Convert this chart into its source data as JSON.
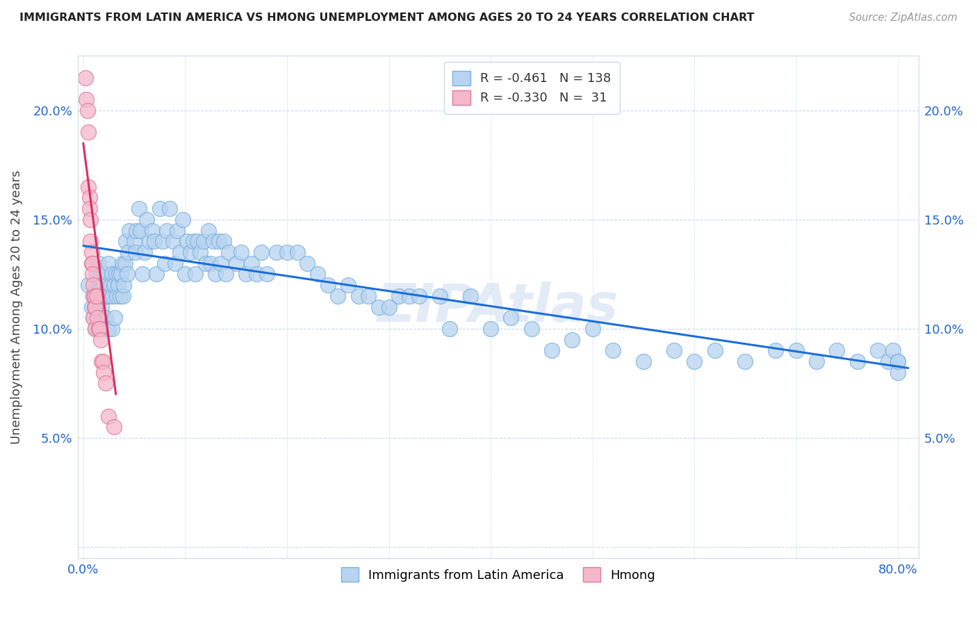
{
  "title": "IMMIGRANTS FROM LATIN AMERICA VS HMONG UNEMPLOYMENT AMONG AGES 20 TO 24 YEARS CORRELATION CHART",
  "source": "Source: ZipAtlas.com",
  "xlabel_latin": "Immigrants from Latin America",
  "xlabel_hmong": "Hmong",
  "ylabel": "Unemployment Among Ages 20 to 24 years",
  "latin_R": -0.461,
  "latin_N": 138,
  "hmong_R": -0.33,
  "hmong_N": 31,
  "xlim": [
    -0.005,
    0.82
  ],
  "ylim": [
    -0.005,
    0.225
  ],
  "x_ticks": [
    0.0,
    0.1,
    0.2,
    0.3,
    0.4,
    0.5,
    0.6,
    0.7,
    0.8
  ],
  "y_ticks": [
    0.0,
    0.05,
    0.1,
    0.15,
    0.2
  ],
  "latin_color": "#b8d4f0",
  "latin_edge_color": "#7ab0e0",
  "hmong_color": "#f5b8cb",
  "hmong_edge_color": "#e07898",
  "trendline_latin_color": "#1a6ed8",
  "trendline_hmong_color": "#d83060",
  "watermark_color": "#d0dff0",
  "latin_scatter_x": [
    0.005,
    0.008,
    0.01,
    0.01,
    0.012,
    0.013,
    0.013,
    0.014,
    0.015,
    0.015,
    0.016,
    0.016,
    0.017,
    0.017,
    0.018,
    0.018,
    0.019,
    0.019,
    0.02,
    0.02,
    0.021,
    0.021,
    0.022,
    0.022,
    0.023,
    0.023,
    0.024,
    0.025,
    0.025,
    0.026,
    0.027,
    0.028,
    0.028,
    0.029,
    0.03,
    0.031,
    0.032,
    0.033,
    0.034,
    0.035,
    0.036,
    0.037,
    0.038,
    0.039,
    0.04,
    0.041,
    0.042,
    0.043,
    0.044,
    0.045,
    0.05,
    0.051,
    0.052,
    0.055,
    0.056,
    0.058,
    0.06,
    0.062,
    0.065,
    0.068,
    0.07,
    0.072,
    0.075,
    0.078,
    0.08,
    0.082,
    0.085,
    0.088,
    0.09,
    0.092,
    0.095,
    0.098,
    0.1,
    0.102,
    0.105,
    0.108,
    0.11,
    0.112,
    0.115,
    0.118,
    0.12,
    0.123,
    0.125,
    0.128,
    0.13,
    0.133,
    0.135,
    0.138,
    0.14,
    0.143,
    0.15,
    0.155,
    0.16,
    0.165,
    0.17,
    0.175,
    0.18,
    0.19,
    0.2,
    0.21,
    0.22,
    0.23,
    0.24,
    0.25,
    0.26,
    0.27,
    0.28,
    0.29,
    0.3,
    0.31,
    0.32,
    0.33,
    0.35,
    0.36,
    0.38,
    0.4,
    0.42,
    0.44,
    0.46,
    0.48,
    0.5,
    0.52,
    0.55,
    0.58,
    0.6,
    0.62,
    0.65,
    0.68,
    0.7,
    0.72,
    0.74,
    0.76,
    0.78,
    0.79,
    0.795,
    0.8,
    0.8,
    0.8
  ],
  "latin_scatter_y": [
    0.12,
    0.11,
    0.105,
    0.115,
    0.1,
    0.115,
    0.125,
    0.11,
    0.1,
    0.13,
    0.115,
    0.12,
    0.105,
    0.125,
    0.11,
    0.12,
    0.105,
    0.115,
    0.1,
    0.12,
    0.115,
    0.125,
    0.105,
    0.115,
    0.1,
    0.12,
    0.115,
    0.1,
    0.13,
    0.115,
    0.12,
    0.1,
    0.125,
    0.115,
    0.12,
    0.105,
    0.125,
    0.115,
    0.12,
    0.125,
    0.115,
    0.125,
    0.13,
    0.115,
    0.12,
    0.13,
    0.14,
    0.125,
    0.135,
    0.145,
    0.14,
    0.135,
    0.145,
    0.155,
    0.145,
    0.125,
    0.135,
    0.15,
    0.14,
    0.145,
    0.14,
    0.125,
    0.155,
    0.14,
    0.13,
    0.145,
    0.155,
    0.14,
    0.13,
    0.145,
    0.135,
    0.15,
    0.125,
    0.14,
    0.135,
    0.14,
    0.125,
    0.14,
    0.135,
    0.14,
    0.13,
    0.145,
    0.13,
    0.14,
    0.125,
    0.14,
    0.13,
    0.14,
    0.125,
    0.135,
    0.13,
    0.135,
    0.125,
    0.13,
    0.125,
    0.135,
    0.125,
    0.135,
    0.135,
    0.135,
    0.13,
    0.125,
    0.12,
    0.115,
    0.12,
    0.115,
    0.115,
    0.11,
    0.11,
    0.115,
    0.115,
    0.115,
    0.115,
    0.1,
    0.115,
    0.1,
    0.105,
    0.1,
    0.09,
    0.095,
    0.1,
    0.09,
    0.085,
    0.09,
    0.085,
    0.09,
    0.085,
    0.09,
    0.09,
    0.085,
    0.09,
    0.085,
    0.09,
    0.085,
    0.09,
    0.085,
    0.08,
    0.085
  ],
  "hmong_scatter_x": [
    0.002,
    0.003,
    0.004,
    0.005,
    0.005,
    0.006,
    0.006,
    0.007,
    0.007,
    0.008,
    0.008,
    0.009,
    0.009,
    0.01,
    0.01,
    0.01,
    0.011,
    0.011,
    0.012,
    0.012,
    0.013,
    0.014,
    0.015,
    0.016,
    0.017,
    0.018,
    0.019,
    0.02,
    0.022,
    0.025,
    0.03
  ],
  "hmong_scatter_y": [
    0.215,
    0.205,
    0.2,
    0.19,
    0.165,
    0.16,
    0.155,
    0.15,
    0.14,
    0.135,
    0.13,
    0.13,
    0.125,
    0.115,
    0.12,
    0.105,
    0.11,
    0.115,
    0.1,
    0.11,
    0.115,
    0.105,
    0.1,
    0.1,
    0.095,
    0.085,
    0.085,
    0.08,
    0.075,
    0.06,
    0.055
  ],
  "latin_trend_x": [
    0.0,
    0.81
  ],
  "latin_trend_y": [
    0.138,
    0.082
  ],
  "hmong_trend_x": [
    0.0,
    0.032
  ],
  "hmong_trend_y": [
    0.185,
    0.07
  ]
}
